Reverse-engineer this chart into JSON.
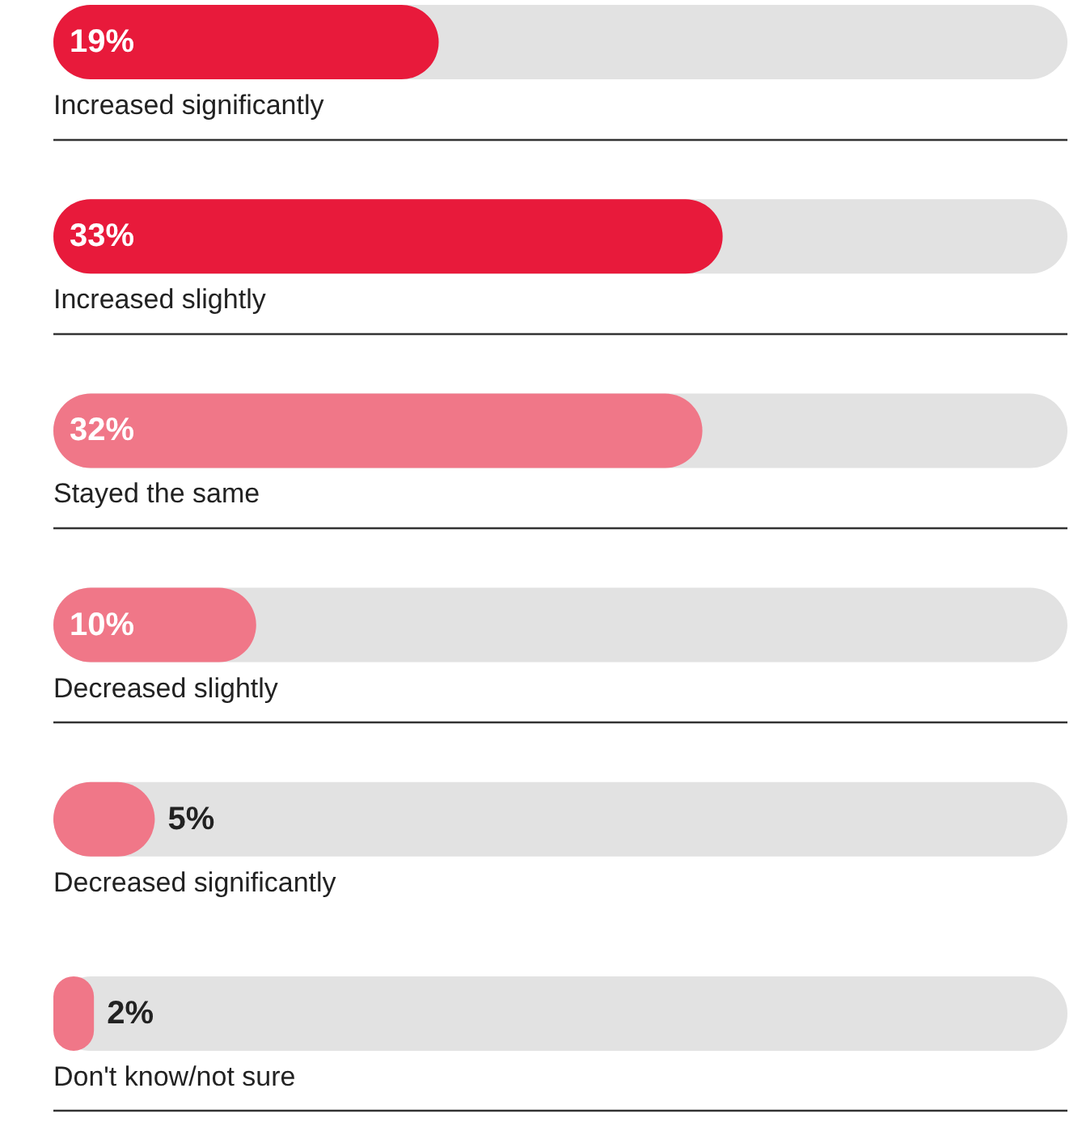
{
  "chart_data": {
    "type": "bar",
    "orientation": "horizontal",
    "categories": [
      "Increased significantly",
      "Increased slightly",
      "Stayed the same",
      "Decreased slightly",
      "Decreased significantly",
      "Don't know/not sure"
    ],
    "values": [
      19,
      33,
      32,
      10,
      5,
      2
    ],
    "colors": [
      "#e81a3b",
      "#e81a3b",
      "#f07788",
      "#f07788",
      "#f07788",
      "#f07788"
    ],
    "value_labels": [
      "19%",
      "33%",
      "32%",
      "10%",
      "5%",
      "2%"
    ],
    "xlim": [
      0,
      50
    ],
    "grid": "y"
  }
}
